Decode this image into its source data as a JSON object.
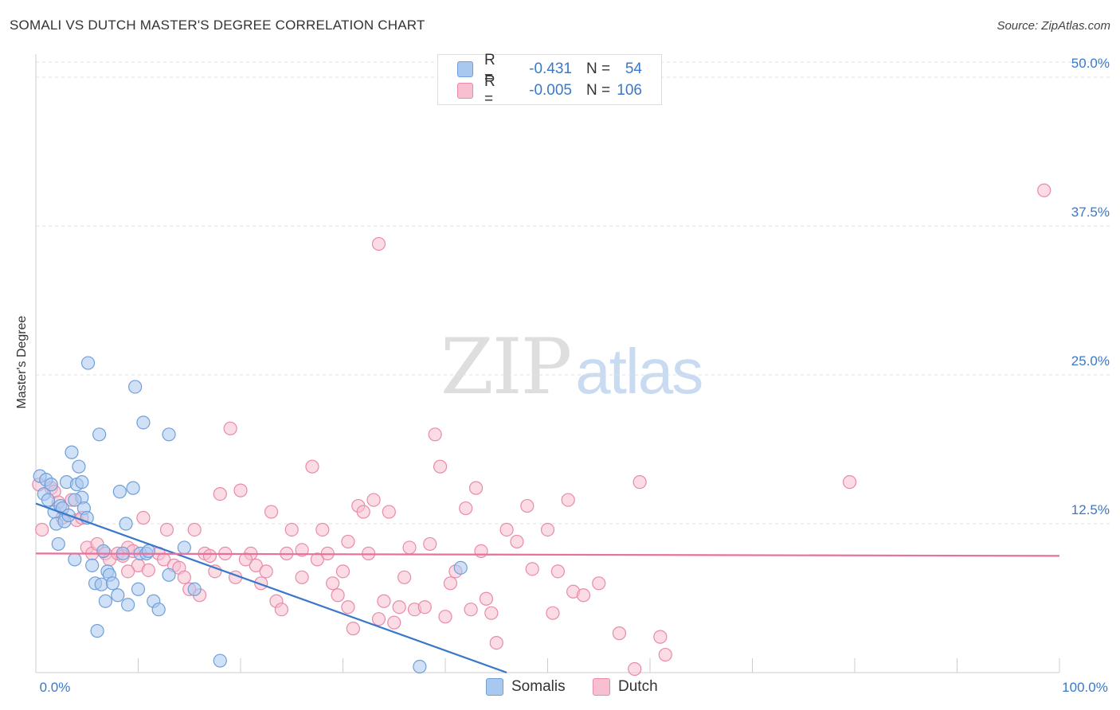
{
  "header": {
    "title": "SOMALI VS DUTCH MASTER'S DEGREE CORRELATION CHART",
    "source": "Source: ZipAtlas.com"
  },
  "watermark": {
    "zip": "ZIP",
    "atlas": "atlas"
  },
  "legend": {
    "rows": [
      {
        "r_label": "R =",
        "r_value": "-0.431",
        "n_label": "N =",
        "n_value": "54",
        "color": "#a9c8f0",
        "border": "#6f9fd8"
      },
      {
        "r_label": "R =",
        "r_value": "-0.005",
        "n_label": "N =",
        "n_value": "106",
        "color": "#f7bfd0",
        "border": "#e98aa8"
      }
    ]
  },
  "bottom_legend": {
    "somalis": "Somalis",
    "dutch": "Dutch"
  },
  "chart_data": {
    "type": "scatter",
    "title": "SOMALI VS DUTCH MASTER'S DEGREE CORRELATION CHART",
    "ylabel": "Master's Degree",
    "xlim": [
      0,
      100
    ],
    "ylim": [
      0,
      50
    ],
    "x_tick_labels": [
      "0.0%",
      "100.0%"
    ],
    "y_ticks": [
      12.5,
      25.0,
      37.5,
      50.0
    ],
    "y_tick_labels": [
      "12.5%",
      "25.0%",
      "37.5%",
      "50.0%"
    ],
    "grid": true,
    "series": [
      {
        "name": "Somalis",
        "color": "#6f9fd8",
        "fill": "#a9c8f0",
        "trend": {
          "x0": 0.0,
          "y0": 14.2,
          "x1": 46.0,
          "y1": 0.0
        },
        "points": [
          [
            0.4,
            16.5
          ],
          [
            0.8,
            15.0
          ],
          [
            1.0,
            16.2
          ],
          [
            1.2,
            14.5
          ],
          [
            1.5,
            15.8
          ],
          [
            1.8,
            13.5
          ],
          [
            2.0,
            12.5
          ],
          [
            2.2,
            10.8
          ],
          [
            2.4,
            14.0
          ],
          [
            2.6,
            13.8
          ],
          [
            2.8,
            12.7
          ],
          [
            3.0,
            16.0
          ],
          [
            3.2,
            13.2
          ],
          [
            3.5,
            18.5
          ],
          [
            3.8,
            9.5
          ],
          [
            4.0,
            15.8
          ],
          [
            4.2,
            17.3
          ],
          [
            4.5,
            16.0
          ],
          [
            4.5,
            14.7
          ],
          [
            4.7,
            13.8
          ],
          [
            5.0,
            13.0
          ],
          [
            3.8,
            14.5
          ],
          [
            5.1,
            26.0
          ],
          [
            5.5,
            9.0
          ],
          [
            5.8,
            7.5
          ],
          [
            6.0,
            3.5
          ],
          [
            6.2,
            20.0
          ],
          [
            6.4,
            7.4
          ],
          [
            6.6,
            10.2
          ],
          [
            6.8,
            6.0
          ],
          [
            7.0,
            8.5
          ],
          [
            7.2,
            8.2
          ],
          [
            7.5,
            7.5
          ],
          [
            8.0,
            6.5
          ],
          [
            8.2,
            15.2
          ],
          [
            8.5,
            10.0
          ],
          [
            8.8,
            12.5
          ],
          [
            9.0,
            5.7
          ],
          [
            9.5,
            15.5
          ],
          [
            9.7,
            24.0
          ],
          [
            10.0,
            7.0
          ],
          [
            10.2,
            10.0
          ],
          [
            10.5,
            21.0
          ],
          [
            10.8,
            10.0
          ],
          [
            11.0,
            10.2
          ],
          [
            11.5,
            6.0
          ],
          [
            12.0,
            5.3
          ],
          [
            13.0,
            20.0
          ],
          [
            13.0,
            8.2
          ],
          [
            14.5,
            10.5
          ],
          [
            15.5,
            7.0
          ],
          [
            18.0,
            1.0
          ],
          [
            37.5,
            0.5
          ],
          [
            41.5,
            8.8
          ]
        ]
      },
      {
        "name": "Dutch",
        "color": "#e98aa8",
        "fill": "#f7bfd0",
        "trend": {
          "x0": 0.0,
          "y0": 10.0,
          "x1": 100.0,
          "y1": 9.8
        },
        "points": [
          [
            0.3,
            15.8
          ],
          [
            0.6,
            12.0
          ],
          [
            1.5,
            15.5
          ],
          [
            1.8,
            15.2
          ],
          [
            2.2,
            14.3
          ],
          [
            2.6,
            13.0
          ],
          [
            3.5,
            14.5
          ],
          [
            4.0,
            12.8
          ],
          [
            4.5,
            13.0
          ],
          [
            5.0,
            10.5
          ],
          [
            5.5,
            10.0
          ],
          [
            6.0,
            10.8
          ],
          [
            6.8,
            10.0
          ],
          [
            7.2,
            9.5
          ],
          [
            8.0,
            10.0
          ],
          [
            8.5,
            9.8
          ],
          [
            9.0,
            10.5
          ],
          [
            9.5,
            10.2
          ],
          [
            10.0,
            9.0
          ],
          [
            10.5,
            13.0
          ],
          [
            11.0,
            8.6
          ],
          [
            12.0,
            10.0
          ],
          [
            12.5,
            9.5
          ],
          [
            12.8,
            12.0
          ],
          [
            13.5,
            9.0
          ],
          [
            14.0,
            8.8
          ],
          [
            14.5,
            8.0
          ],
          [
            15.0,
            7.0
          ],
          [
            15.5,
            12.0
          ],
          [
            16.0,
            6.5
          ],
          [
            16.5,
            10.0
          ],
          [
            17.0,
            9.8
          ],
          [
            17.5,
            8.5
          ],
          [
            18.0,
            15.0
          ],
          [
            18.5,
            10.0
          ],
          [
            19.0,
            20.5
          ],
          [
            19.5,
            8.0
          ],
          [
            20.0,
            15.3
          ],
          [
            21.0,
            10.0
          ],
          [
            21.5,
            9.0
          ],
          [
            22.0,
            7.5
          ],
          [
            22.5,
            8.5
          ],
          [
            23.0,
            13.5
          ],
          [
            23.5,
            6.0
          ],
          [
            24.0,
            5.3
          ],
          [
            24.5,
            10.0
          ],
          [
            25.0,
            12.0
          ],
          [
            26.0,
            8.0
          ],
          [
            27.0,
            17.3
          ],
          [
            27.5,
            9.5
          ],
          [
            28.0,
            12.0
          ],
          [
            28.5,
            10.0
          ],
          [
            29.0,
            7.5
          ],
          [
            29.5,
            6.5
          ],
          [
            30.0,
            8.5
          ],
          [
            30.5,
            5.5
          ],
          [
            31.0,
            3.7
          ],
          [
            31.5,
            14.0
          ],
          [
            32.0,
            13.5
          ],
          [
            32.5,
            10.0
          ],
          [
            33.0,
            14.5
          ],
          [
            33.5,
            4.5
          ],
          [
            34.0,
            6.0
          ],
          [
            34.5,
            13.5
          ],
          [
            35.0,
            4.2
          ],
          [
            35.5,
            5.5
          ],
          [
            36.0,
            8.0
          ],
          [
            36.5,
            10.5
          ],
          [
            33.5,
            36.0
          ],
          [
            37.0,
            5.3
          ],
          [
            38.0,
            5.5
          ],
          [
            38.5,
            10.8
          ],
          [
            39.0,
            20.0
          ],
          [
            39.5,
            17.3
          ],
          [
            40.0,
            4.7
          ],
          [
            40.5,
            7.5
          ],
          [
            41.0,
            8.5
          ],
          [
            42.0,
            13.8
          ],
          [
            42.5,
            5.3
          ],
          [
            43.0,
            15.5
          ],
          [
            43.5,
            10.2
          ],
          [
            44.0,
            6.2
          ],
          [
            44.5,
            5.0
          ],
          [
            45.0,
            2.5
          ],
          [
            46.0,
            12.0
          ],
          [
            47.0,
            11.0
          ],
          [
            48.0,
            14.0
          ],
          [
            48.5,
            8.7
          ],
          [
            50.0,
            12.0
          ],
          [
            50.5,
            5.0
          ],
          [
            51.0,
            8.5
          ],
          [
            52.0,
            14.5
          ],
          [
            52.5,
            6.8
          ],
          [
            53.5,
            6.5
          ],
          [
            55.0,
            7.5
          ],
          [
            57.0,
            3.3
          ],
          [
            58.5,
            0.3
          ],
          [
            59.0,
            16.0
          ],
          [
            61.0,
            3.0
          ],
          [
            61.5,
            1.5
          ],
          [
            79.5,
            16.0
          ],
          [
            98.5,
            40.5
          ],
          [
            30.5,
            11.0
          ],
          [
            20.5,
            9.5
          ],
          [
            26.0,
            10.3
          ],
          [
            9.0,
            8.5
          ]
        ]
      }
    ]
  }
}
